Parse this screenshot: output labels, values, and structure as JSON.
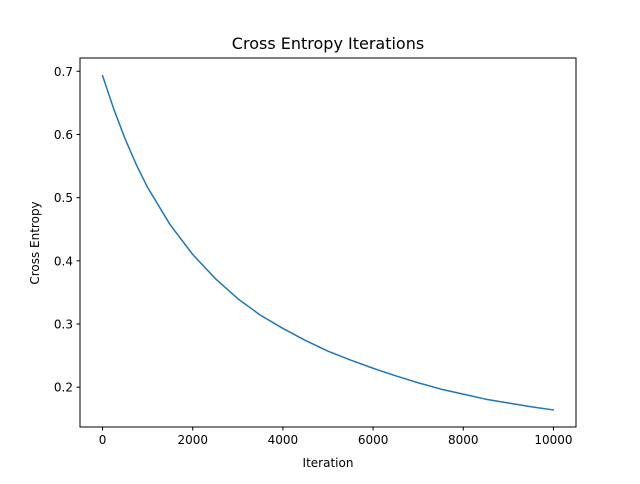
{
  "chart_data": {
    "type": "line",
    "title": "Cross Entropy Iterations",
    "xlabel": "Iteration",
    "ylabel": "Cross Entropy",
    "xlim": [
      -500,
      10500
    ],
    "ylim": [
      0.137,
      0.721
    ],
    "x_ticks": [
      0,
      2000,
      4000,
      6000,
      8000,
      10000
    ],
    "x_tick_labels": [
      "0",
      "2000",
      "4000",
      "6000",
      "8000",
      "10000"
    ],
    "y_ticks": [
      0.2,
      0.3,
      0.4,
      0.5,
      0.6,
      0.7
    ],
    "y_tick_labels": [
      "0.2",
      "0.3",
      "0.4",
      "0.5",
      "0.6",
      "0.7"
    ],
    "grid": false,
    "legend": "none",
    "series": [
      {
        "color": "#1f77b4",
        "x": [
          0,
          250,
          500,
          750,
          1000,
          1500,
          2000,
          2500,
          3000,
          3500,
          4000,
          4500,
          5000,
          5500,
          6000,
          6500,
          7000,
          7500,
          8000,
          8500,
          9000,
          9500,
          10000
        ],
        "y": [
          0.693,
          0.64,
          0.593,
          0.552,
          0.516,
          0.457,
          0.41,
          0.372,
          0.34,
          0.314,
          0.293,
          0.274,
          0.257,
          0.243,
          0.23,
          0.218,
          0.207,
          0.197,
          0.189,
          0.181,
          0.175,
          0.169,
          0.164
        ]
      }
    ]
  }
}
